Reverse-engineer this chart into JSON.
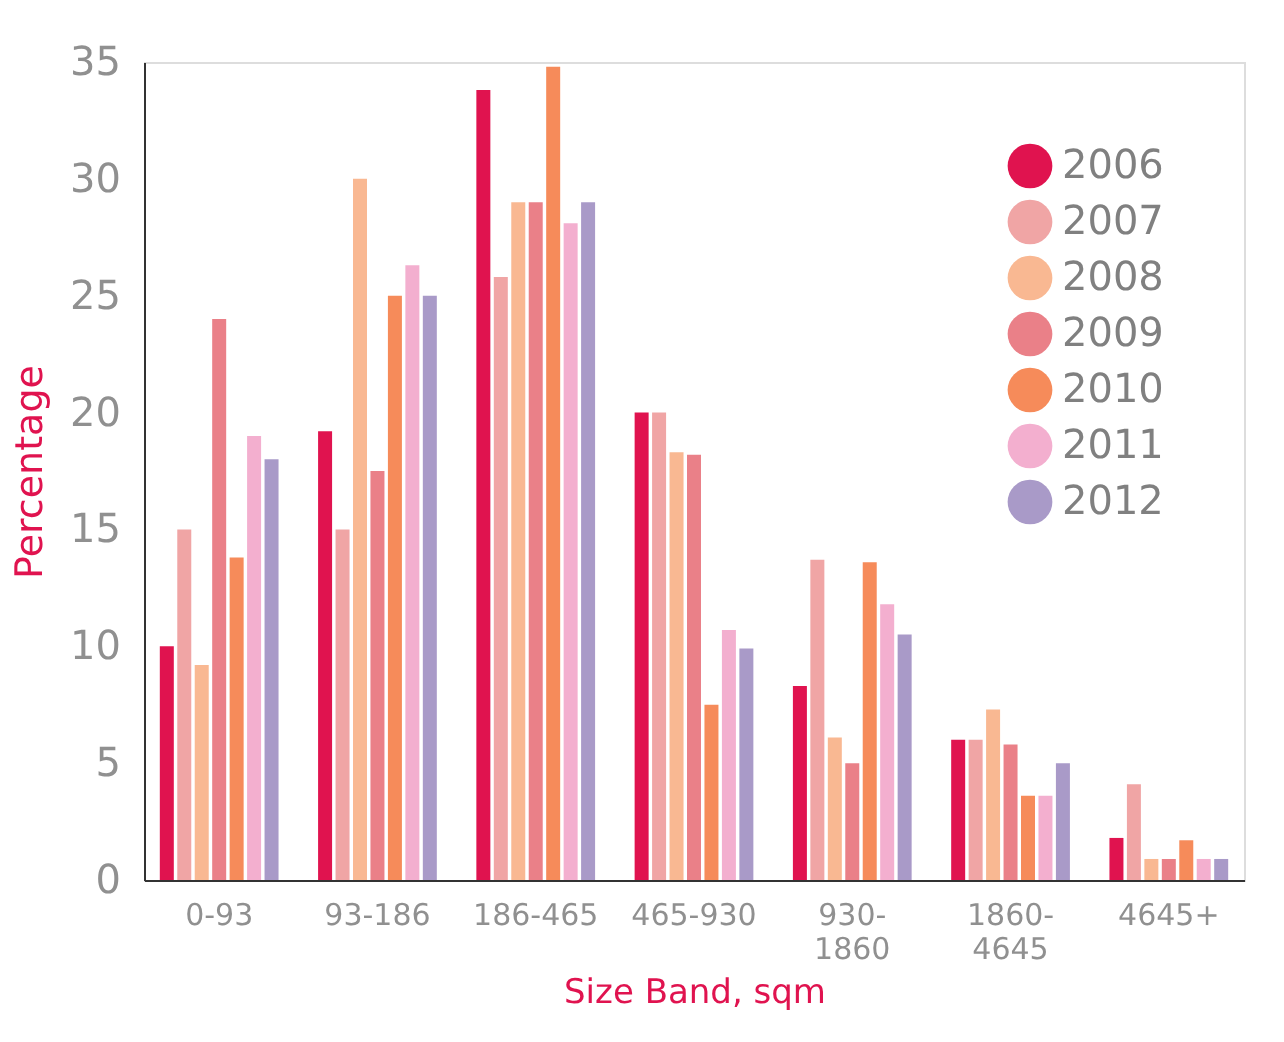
{
  "chart_data": {
    "type": "bar",
    "xlabel": "Size Band, sqm",
    "ylabel": "Percentage",
    "categories": [
      "0-93",
      "93-186",
      "186-465",
      "465-930",
      "930-1860",
      "1860-4645",
      "4645+"
    ],
    "series": [
      {
        "name": "2006",
        "color": "#e0134f",
        "values": [
          10,
          19.2,
          33.8,
          20,
          8.3,
          6,
          1.8
        ]
      },
      {
        "name": "2007",
        "color": "#f0a5a5",
        "values": [
          15,
          15,
          25.8,
          20,
          13.7,
          6,
          4.1
        ]
      },
      {
        "name": "2008",
        "color": "#f9b892",
        "values": [
          9.2,
          30,
          29,
          18.3,
          6.1,
          7.3,
          0.9
        ]
      },
      {
        "name": "2009",
        "color": "#ea8088",
        "values": [
          24,
          17.5,
          29,
          18.2,
          5,
          5.8,
          0.9
        ]
      },
      {
        "name": "2010",
        "color": "#f68b5a",
        "values": [
          13.8,
          25,
          34.8,
          7.5,
          13.6,
          3.6,
          1.7
        ]
      },
      {
        "name": "2011",
        "color": "#f3afcf",
        "values": [
          19,
          26.3,
          28.1,
          10.7,
          11.8,
          3.6,
          0.9
        ]
      },
      {
        "name": "2012",
        "color": "#a99ac8",
        "values": [
          18,
          25,
          29,
          9.9,
          10.5,
          5,
          0.9
        ]
      }
    ],
    "ylim": [
      0,
      35
    ],
    "yticks": [
      0,
      5,
      10,
      15,
      20,
      25,
      30,
      35
    ],
    "grid": false,
    "legend": "top right"
  }
}
